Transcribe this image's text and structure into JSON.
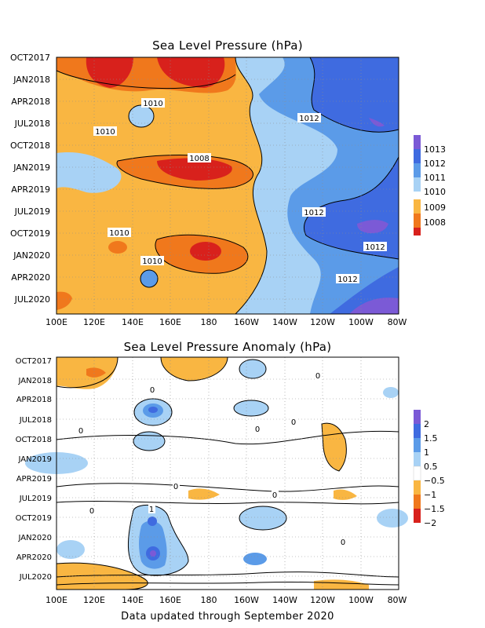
{
  "footer": "Data updated through September 2020",
  "chart_data": [
    {
      "type": "heatmap",
      "title": "Sea Level Pressure (hPa)",
      "xlabel": "",
      "ylabel": "",
      "x_ticks": [
        "100E",
        "120E",
        "140E",
        "160E",
        "180",
        "160W",
        "140W",
        "120W",
        "100W",
        "80W"
      ],
      "y_ticks": [
        "OCT2017",
        "JAN2018",
        "APR2018",
        "JUL2018",
        "OCT2018",
        "JAN2019",
        "APR2019",
        "JUL2019",
        "OCT2019",
        "JAN2020",
        "APR2020",
        "JUL2020"
      ],
      "xlim": [
        "100E",
        "80W"
      ],
      "ylim": [
        "OCT2017",
        "SEP2020"
      ],
      "colorbar": {
        "labels": [
          "1013",
          "1012",
          "1011",
          "1010",
          "1009",
          "1008"
        ],
        "colors": [
          "#7b5ad6",
          "#3f6be0",
          "#5b9be8",
          "#a8d2f5",
          "#ffffff",
          "#f9b642",
          "#f0781c",
          "#d8211c"
        ]
      },
      "contour_labels": [
        "1010",
        "1010",
        "1012",
        "1008",
        "1012",
        "1010",
        "1012",
        "1010",
        "1012"
      ],
      "grid": true
    },
    {
      "type": "heatmap",
      "title": "Sea Level Pressure Anomaly (hPa)",
      "xlabel": "",
      "ylabel": "",
      "x_ticks": [
        "100E",
        "120E",
        "140E",
        "160E",
        "180",
        "160W",
        "140W",
        "120W",
        "100W",
        "80W"
      ],
      "y_ticks": [
        "OCT2017",
        "JAN2018",
        "APR2018",
        "JUL2018",
        "OCT2018",
        "JAN2019",
        "APR2019",
        "JUL2019",
        "OCT2019",
        "JAN2020",
        "APR2020",
        "JUL2020"
      ],
      "xlim": [
        "100E",
        "80W"
      ],
      "ylim": [
        "OCT2017",
        "SEP2020"
      ],
      "colorbar": {
        "labels": [
          "2",
          "1.5",
          "1",
          "0.5",
          "−0.5",
          "−1",
          "−1.5",
          "−2"
        ],
        "colors": [
          "#7b5ad6",
          "#3f6be0",
          "#5b9be8",
          "#a8d2f5",
          "#ffffff",
          "#f9b642",
          "#f0781c",
          "#d8211c"
        ]
      },
      "contour_labels": [
        "0",
        "0",
        "0",
        "0",
        "0",
        "0",
        "0",
        "0",
        "0",
        "1"
      ],
      "grid": true
    }
  ]
}
